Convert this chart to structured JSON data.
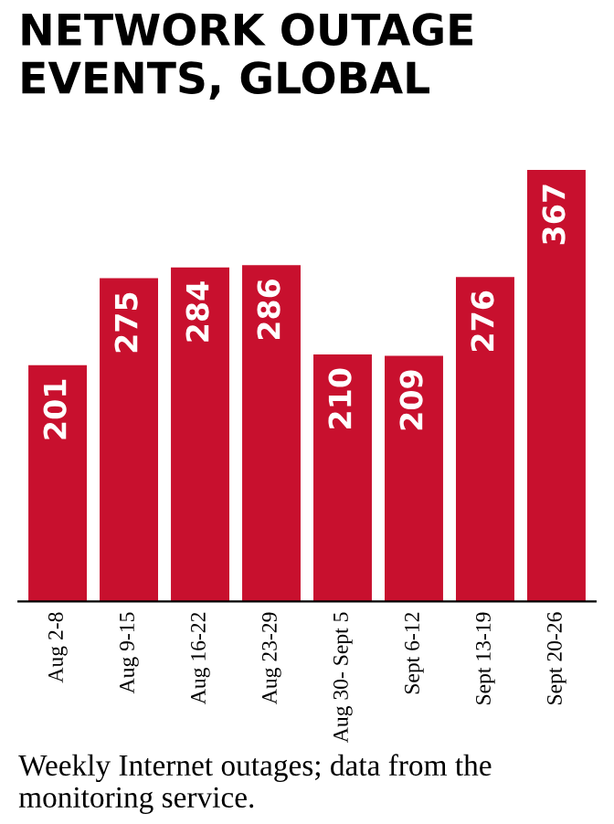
{
  "chart_data": {
    "type": "bar",
    "title": "NETWORK OUTAGE EVENTS, GLOBAL",
    "categories": [
      "Aug 2-8",
      "Aug 9-15",
      "Aug 16-22",
      "Aug 23-29",
      "Aug 30- Sept 5",
      "Sept 6-12",
      "Sept 13-19",
      "Sept 20-26"
    ],
    "values": [
      201,
      275,
      284,
      286,
      210,
      209,
      276,
      367
    ],
    "color": "#c8102e",
    "data_labels": true,
    "annotations": [
      "Weekly Internet outages; data from the monitoring service."
    ]
  }
}
